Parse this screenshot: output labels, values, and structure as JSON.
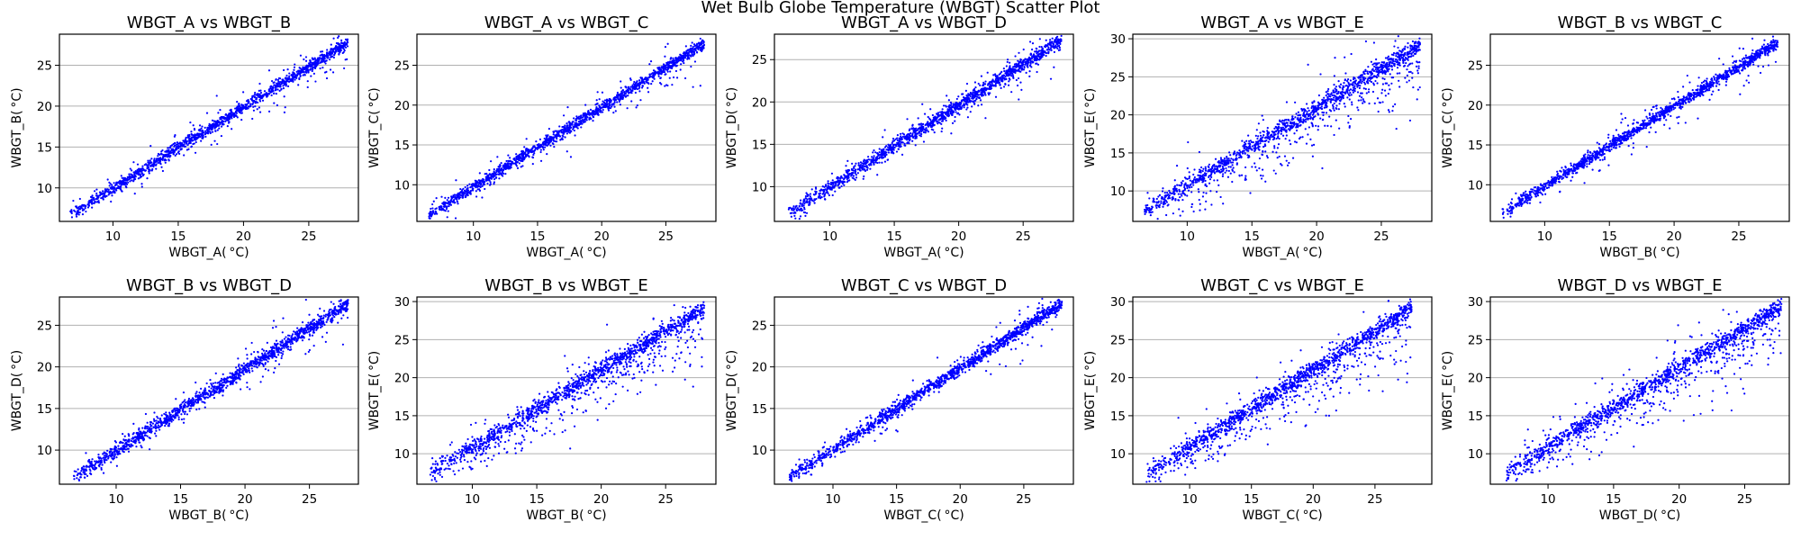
{
  "figure": {
    "suptitle": "Wet Bulb Globe Temperature (WBGT) Scatter Plot"
  },
  "style": {
    "point_color": "#0000ff",
    "grid_color": "#b0b0b0",
    "grid": "y-major"
  },
  "chart_data": [
    {
      "type": "scatter",
      "title": "WBGT_A vs WBGT_B",
      "xlabel": "WBGT_A( °C)",
      "ylabel": "WBGT_B( °C)",
      "xlim": [
        5.9,
        28.8
      ],
      "ylim": [
        5.9,
        28.8
      ],
      "xticks": [
        10,
        15,
        20,
        25
      ],
      "yticks": [
        10,
        15,
        20,
        25
      ],
      "pattern": {
        "slope": 0.99,
        "intercept": 0.05,
        "spread": 0.35,
        "outlier_spread": 1.3,
        "outlier_fraction": 0.1,
        "skew": 0.0
      },
      "x_range": [
        6.7,
        28.0
      ],
      "n_points": 1500,
      "seed": 11
    },
    {
      "type": "scatter",
      "title": "WBGT_A vs WBGT_C",
      "xlabel": "WBGT_A( °C)",
      "ylabel": "WBGT_C( °C)",
      "xlim": [
        5.6,
        28.9
      ],
      "ylim": [
        5.4,
        28.9
      ],
      "xticks": [
        10,
        15,
        20,
        25
      ],
      "yticks": [
        10,
        15,
        20,
        25
      ],
      "pattern": {
        "slope": 1.0,
        "intercept": -0.3,
        "spread": 0.35,
        "outlier_spread": 1.2,
        "outlier_fraction": 0.1,
        "skew": 0.0
      },
      "x_range": [
        6.5,
        28.0
      ],
      "n_points": 1500,
      "seed": 12
    },
    {
      "type": "scatter",
      "title": "WBGT_A vs WBGT_D",
      "xlabel": "WBGT_A( °C)",
      "ylabel": "WBGT_D( °C)",
      "xlim": [
        5.7,
        28.9
      ],
      "ylim": [
        5.9,
        28.0
      ],
      "xticks": [
        10,
        15,
        20,
        25
      ],
      "yticks": [
        10,
        15,
        20,
        25
      ],
      "pattern": {
        "slope": 0.97,
        "intercept": 0.2,
        "spread": 0.4,
        "outlier_spread": 1.2,
        "outlier_fraction": 0.12,
        "skew": 0.0
      },
      "x_range": [
        6.8,
        28.0
      ],
      "n_points": 1500,
      "seed": 13
    },
    {
      "type": "scatter",
      "title": "WBGT_A vs WBGT_E",
      "xlabel": "WBGT_A( °C)",
      "ylabel": "WBGT_E( °C)",
      "xlim": [
        5.8,
        28.9
      ],
      "ylim": [
        6.0,
        30.6
      ],
      "xticks": [
        10,
        15,
        20,
        25
      ],
      "yticks": [
        10,
        15,
        20,
        25,
        30
      ],
      "pattern": {
        "slope": 1.02,
        "intercept": 0.6,
        "spread": 0.55,
        "outlier_spread": 2.4,
        "outlier_fraction": 0.28,
        "skew": -1.0
      },
      "x_range": [
        6.7,
        28.0
      ],
      "n_points": 1500,
      "seed": 14
    },
    {
      "type": "scatter",
      "title": "WBGT_B vs WBGT_C",
      "xlabel": "WBGT_B( °C)",
      "ylabel": "WBGT_C( °C)",
      "xlim": [
        5.8,
        28.9
      ],
      "ylim": [
        5.4,
        28.9
      ],
      "xticks": [
        10,
        15,
        20,
        25
      ],
      "yticks": [
        10,
        15,
        20,
        25
      ],
      "pattern": {
        "slope": 1.0,
        "intercept": -0.2,
        "spread": 0.35,
        "outlier_spread": 1.3,
        "outlier_fraction": 0.1,
        "skew": 0.0
      },
      "x_range": [
        6.7,
        28.0
      ],
      "n_points": 1500,
      "seed": 15
    },
    {
      "type": "scatter",
      "title": "WBGT_B vs WBGT_D",
      "xlabel": "WBGT_B( °C)",
      "ylabel": "WBGT_D( °C)",
      "xlim": [
        5.6,
        28.8
      ],
      "ylim": [
        5.9,
        28.4
      ],
      "xticks": [
        10,
        15,
        20,
        25
      ],
      "yticks": [
        10,
        15,
        20,
        25
      ],
      "pattern": {
        "slope": 0.98,
        "intercept": 0.1,
        "spread": 0.4,
        "outlier_spread": 1.2,
        "outlier_fraction": 0.12,
        "skew": 0.0
      },
      "x_range": [
        6.7,
        28.0
      ],
      "n_points": 1500,
      "seed": 16
    },
    {
      "type": "scatter",
      "title": "WBGT_B vs WBGT_E",
      "xlabel": "WBGT_B( °C)",
      "ylabel": "WBGT_E( °C)",
      "xlim": [
        5.7,
        28.9
      ],
      "ylim": [
        6.0,
        30.6
      ],
      "xticks": [
        10,
        15,
        20,
        25
      ],
      "yticks": [
        10,
        15,
        20,
        25,
        30
      ],
      "pattern": {
        "slope": 1.02,
        "intercept": 0.6,
        "spread": 0.55,
        "outlier_spread": 2.3,
        "outlier_fraction": 0.28,
        "skew": -1.0
      },
      "x_range": [
        6.7,
        28.0
      ],
      "n_points": 1500,
      "seed": 17
    },
    {
      "type": "scatter",
      "title": "WBGT_C vs WBGT_D",
      "xlabel": "WBGT_C( °C)",
      "ylabel": "WBGT_D( °C)",
      "xlim": [
        5.4,
        28.9
      ],
      "ylim": [
        5.9,
        28.4
      ],
      "xticks": [
        10,
        15,
        20,
        25
      ],
      "yticks": [
        10,
        15,
        20,
        25
      ],
      "pattern": {
        "slope": 0.97,
        "intercept": 0.4,
        "spread": 0.38,
        "outlier_spread": 1.2,
        "outlier_fraction": 0.1,
        "skew": 0.0
      },
      "x_range": [
        6.5,
        28.0
      ],
      "n_points": 1500,
      "seed": 18
    },
    {
      "type": "scatter",
      "title": "WBGT_C vs WBGT_E",
      "xlabel": "WBGT_C( °C)",
      "ylabel": "WBGT_E( °C)",
      "xlim": [
        5.4,
        29.6
      ],
      "ylim": [
        6.0,
        30.6
      ],
      "xticks": [
        10,
        15,
        20,
        25
      ],
      "yticks": [
        10,
        15,
        20,
        25,
        30
      ],
      "pattern": {
        "slope": 1.02,
        "intercept": 0.7,
        "spread": 0.55,
        "outlier_spread": 2.4,
        "outlier_fraction": 0.28,
        "skew": -1.0
      },
      "x_range": [
        6.5,
        28.0
      ],
      "n_points": 1500,
      "seed": 19
    },
    {
      "type": "scatter",
      "title": "WBGT_D vs WBGT_E",
      "xlabel": "WBGT_D( °C)",
      "ylabel": "WBGT_E( °C)",
      "xlim": [
        5.6,
        28.4
      ],
      "ylim": [
        6.0,
        30.6
      ],
      "xticks": [
        10,
        15,
        20,
        25
      ],
      "yticks": [
        10,
        15,
        20,
        25,
        30
      ],
      "pattern": {
        "slope": 1.04,
        "intercept": 0.5,
        "spread": 0.55,
        "outlier_spread": 2.3,
        "outlier_fraction": 0.28,
        "skew": -1.0
      },
      "x_range": [
        6.8,
        27.8
      ],
      "n_points": 1500,
      "seed": 20
    }
  ]
}
